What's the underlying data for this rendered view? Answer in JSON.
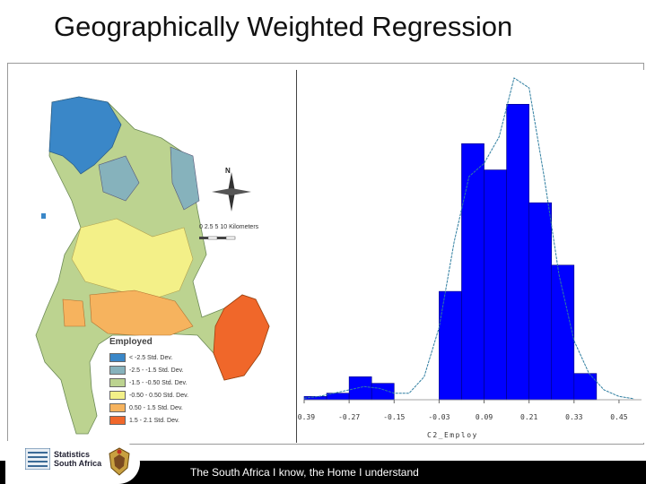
{
  "slide": {
    "title": "Geographically Weighted Regression",
    "footer_text": "The South Africa I know, the Home I understand",
    "logo": {
      "line1": "Statistics",
      "line2": "South Africa"
    }
  },
  "map": {
    "north_label": "N",
    "scale_label": "0 2.5 5      10 Kilometers",
    "legend": {
      "title": "Employed",
      "items": [
        {
          "label": "< -2.5 Std. Dev.",
          "color": "#3a87c8"
        },
        {
          "label": "-2.5 - -1.5 Std. Dev.",
          "color": "#86b2bc"
        },
        {
          "label": "-1.5 - -0.50 Std. Dev.",
          "color": "#bcd390"
        },
        {
          "label": "-0.50 - 0.50 Std. Dev.",
          "color": "#f3f088"
        },
        {
          "label": "0.50 - 1.5 Std. Dev.",
          "color": "#f6b35e"
        },
        {
          "label": "1.5 - 2.1 Std. Dev.",
          "color": "#f0672a"
        }
      ]
    }
  },
  "chart_data": {
    "type": "bar",
    "title": "",
    "xlabel": "C2_Employ",
    "ylabel": "",
    "xlim": [
      -0.39,
      0.51
    ],
    "tick_values": [
      -0.39,
      -0.27,
      -0.15,
      -0.03,
      0.09,
      0.21,
      0.33,
      0.45
    ],
    "tick_labels": [
      "-0.39",
      "-0.27",
      "-0.15",
      "-0.03",
      "0.09",
      "0.21",
      "0.33",
      "0.45"
    ],
    "bin_edges": [
      -0.39,
      -0.33,
      -0.27,
      -0.21,
      -0.15,
      -0.09,
      -0.03,
      0.03,
      0.09,
      0.15,
      0.21,
      0.27,
      0.33,
      0.39,
      0.45
    ],
    "values": [
      1,
      2,
      7,
      5,
      0,
      0,
      33,
      78,
      70,
      90,
      60,
      41,
      8,
      0
    ],
    "density_curve": {
      "x": [
        -0.39,
        -0.35,
        -0.31,
        -0.27,
        -0.23,
        -0.19,
        -0.15,
        -0.11,
        -0.07,
        -0.03,
        0.01,
        0.05,
        0.09,
        0.13,
        0.17,
        0.21,
        0.25,
        0.29,
        0.33,
        0.37,
        0.41,
        0.45,
        0.49
      ],
      "y": [
        0.5,
        1,
        2,
        3,
        4,
        3.5,
        2,
        2,
        7,
        22,
        48,
        68,
        72,
        80,
        98,
        95,
        68,
        38,
        18,
        8,
        3,
        1,
        0.3
      ]
    },
    "bar_color": "#0000ff",
    "curve_color": "#2f7ea0",
    "grid": false,
    "legend": "none"
  }
}
